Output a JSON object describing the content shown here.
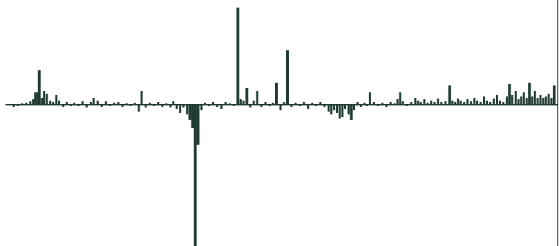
{
  "chart_data": {
    "type": "bar",
    "title": "",
    "xlabel": "",
    "ylabel": "",
    "grid": false,
    "legend": "none",
    "bar_color": "#1e3a2f",
    "axis_color": "#1e3a2f",
    "ylim": [
      -205,
      141
    ],
    "xlim": [
      0,
      800
    ],
    "bars": [
      {
        "x": 10,
        "y": -3
      },
      {
        "x": 16,
        "y": -2
      },
      {
        "x": 22,
        "y": 2
      },
      {
        "x": 28,
        "y": 3
      },
      {
        "x": 34,
        "y": 5
      },
      {
        "x": 38,
        "y": 8
      },
      {
        "x": 41,
        "y": 18
      },
      {
        "x": 44,
        "y": 18
      },
      {
        "x": 47,
        "y": 50
      },
      {
        "x": 51,
        "y": 10
      },
      {
        "x": 54,
        "y": 20
      },
      {
        "x": 58,
        "y": 16
      },
      {
        "x": 63,
        "y": 6
      },
      {
        "x": 67,
        "y": 4
      },
      {
        "x": 72,
        "y": 14
      },
      {
        "x": 76,
        "y": 6
      },
      {
        "x": 82,
        "y": -3
      },
      {
        "x": 87,
        "y": 4
      },
      {
        "x": 93,
        "y": -2
      },
      {
        "x": 98,
        "y": 3
      },
      {
        "x": 104,
        "y": -2
      },
      {
        "x": 110,
        "y": 5
      },
      {
        "x": 116,
        "y": -4
      },
      {
        "x": 122,
        "y": 4
      },
      {
        "x": 126,
        "y": 10
      },
      {
        "x": 132,
        "y": 6
      },
      {
        "x": 138,
        "y": -3
      },
      {
        "x": 144,
        "y": 5
      },
      {
        "x": 150,
        "y": -2
      },
      {
        "x": 156,
        "y": 3
      },
      {
        "x": 162,
        "y": 4
      },
      {
        "x": 168,
        "y": -3
      },
      {
        "x": 174,
        "y": 2
      },
      {
        "x": 180,
        "y": -2
      },
      {
        "x": 186,
        "y": 3
      },
      {
        "x": 192,
        "y": -10
      },
      {
        "x": 196,
        "y": 20
      },
      {
        "x": 202,
        "y": -4
      },
      {
        "x": 208,
        "y": 3
      },
      {
        "x": 214,
        "y": -2
      },
      {
        "x": 220,
        "y": 4
      },
      {
        "x": 226,
        "y": -3
      },
      {
        "x": 232,
        "y": 2
      },
      {
        "x": 238,
        "y": -4
      },
      {
        "x": 242,
        "y": 5
      },
      {
        "x": 247,
        "y": -6
      },
      {
        "x": 252,
        "y": -12
      },
      {
        "x": 257,
        "y": -4
      },
      {
        "x": 262,
        "y": -14
      },
      {
        "x": 266,
        "y": -22
      },
      {
        "x": 270,
        "y": -34
      },
      {
        "x": 274,
        "y": -205
      },
      {
        "x": 278,
        "y": -58
      },
      {
        "x": 283,
        "y": -8
      },
      {
        "x": 288,
        "y": 3
      },
      {
        "x": 294,
        "y": -2
      },
      {
        "x": 300,
        "y": 4
      },
      {
        "x": 306,
        "y": -3
      },
      {
        "x": 312,
        "y": -6
      },
      {
        "x": 318,
        "y": 4
      },
      {
        "x": 324,
        "y": 2
      },
      {
        "x": 330,
        "y": -2
      },
      {
        "x": 336,
        "y": 141
      },
      {
        "x": 340,
        "y": 8
      },
      {
        "x": 344,
        "y": 6
      },
      {
        "x": 349,
        "y": 24
      },
      {
        "x": 354,
        "y": -4
      },
      {
        "x": 359,
        "y": 6
      },
      {
        "x": 364,
        "y": 20
      },
      {
        "x": 370,
        "y": -3
      },
      {
        "x": 376,
        "y": 4
      },
      {
        "x": 382,
        "y": -2
      },
      {
        "x": 387,
        "y": 3
      },
      {
        "x": 392,
        "y": 32
      },
      {
        "x": 398,
        "y": -8
      },
      {
        "x": 403,
        "y": 4
      },
      {
        "x": 408,
        "y": 79
      },
      {
        "x": 414,
        "y": -3
      },
      {
        "x": 420,
        "y": 3
      },
      {
        "x": 426,
        "y": -2
      },
      {
        "x": 432,
        "y": 4
      },
      {
        "x": 438,
        "y": -6
      },
      {
        "x": 444,
        "y": 3
      },
      {
        "x": 450,
        "y": -2
      },
      {
        "x": 456,
        "y": 4
      },
      {
        "x": 462,
        "y": -3
      },
      {
        "x": 468,
        "y": -10
      },
      {
        "x": 472,
        "y": -14
      },
      {
        "x": 476,
        "y": -8
      },
      {
        "x": 480,
        "y": -12
      },
      {
        "x": 484,
        "y": -20
      },
      {
        "x": 488,
        "y": -18
      },
      {
        "x": 492,
        "y": -6
      },
      {
        "x": 497,
        "y": -14
      },
      {
        "x": 501,
        "y": -22
      },
      {
        "x": 505,
        "y": -8
      },
      {
        "x": 510,
        "y": 4
      },
      {
        "x": 515,
        "y": -3
      },
      {
        "x": 520,
        "y": 3
      },
      {
        "x": 524,
        "y": -2
      },
      {
        "x": 528,
        "y": 18
      },
      {
        "x": 534,
        "y": 4
      },
      {
        "x": 540,
        "y": -2
      },
      {
        "x": 546,
        "y": 3
      },
      {
        "x": 552,
        "y": -3
      },
      {
        "x": 558,
        "y": 4
      },
      {
        "x": 564,
        "y": 2
      },
      {
        "x": 568,
        "y": 8
      },
      {
        "x": 572,
        "y": 18
      },
      {
        "x": 576,
        "y": 5
      },
      {
        "x": 582,
        "y": -2
      },
      {
        "x": 588,
        "y": 4
      },
      {
        "x": 594,
        "y": 10
      },
      {
        "x": 598,
        "y": 6
      },
      {
        "x": 602,
        "y": 4
      },
      {
        "x": 607,
        "y": 8
      },
      {
        "x": 612,
        "y": 3
      },
      {
        "x": 617,
        "y": 6
      },
      {
        "x": 622,
        "y": 4
      },
      {
        "x": 627,
        "y": 9
      },
      {
        "x": 632,
        "y": 4
      },
      {
        "x": 638,
        "y": 5
      },
      {
        "x": 644,
        "y": 28
      },
      {
        "x": 648,
        "y": 6
      },
      {
        "x": 652,
        "y": 4
      },
      {
        "x": 656,
        "y": 9
      },
      {
        "x": 660,
        "y": 6
      },
      {
        "x": 665,
        "y": 4
      },
      {
        "x": 670,
        "y": 8
      },
      {
        "x": 675,
        "y": 5
      },
      {
        "x": 680,
        "y": 10
      },
      {
        "x": 684,
        "y": 6
      },
      {
        "x": 689,
        "y": 4
      },
      {
        "x": 694,
        "y": 12
      },
      {
        "x": 698,
        "y": 6
      },
      {
        "x": 703,
        "y": 4
      },
      {
        "x": 708,
        "y": 9
      },
      {
        "x": 713,
        "y": 14
      },
      {
        "x": 717,
        "y": 6
      },
      {
        "x": 722,
        "y": 4
      },
      {
        "x": 727,
        "y": 12
      },
      {
        "x": 731,
        "y": 30
      },
      {
        "x": 735,
        "y": 14
      },
      {
        "x": 740,
        "y": 20
      },
      {
        "x": 744,
        "y": 8
      },
      {
        "x": 748,
        "y": 12
      },
      {
        "x": 752,
        "y": 18
      },
      {
        "x": 756,
        "y": 10
      },
      {
        "x": 760,
        "y": 32
      },
      {
        "x": 764,
        "y": 12
      },
      {
        "x": 768,
        "y": 20
      },
      {
        "x": 772,
        "y": 10
      },
      {
        "x": 776,
        "y": 14
      },
      {
        "x": 780,
        "y": 10
      },
      {
        "x": 784,
        "y": 12
      },
      {
        "x": 788,
        "y": 16
      },
      {
        "x": 792,
        "y": 10
      },
      {
        "x": 796,
        "y": 28
      }
    ]
  }
}
